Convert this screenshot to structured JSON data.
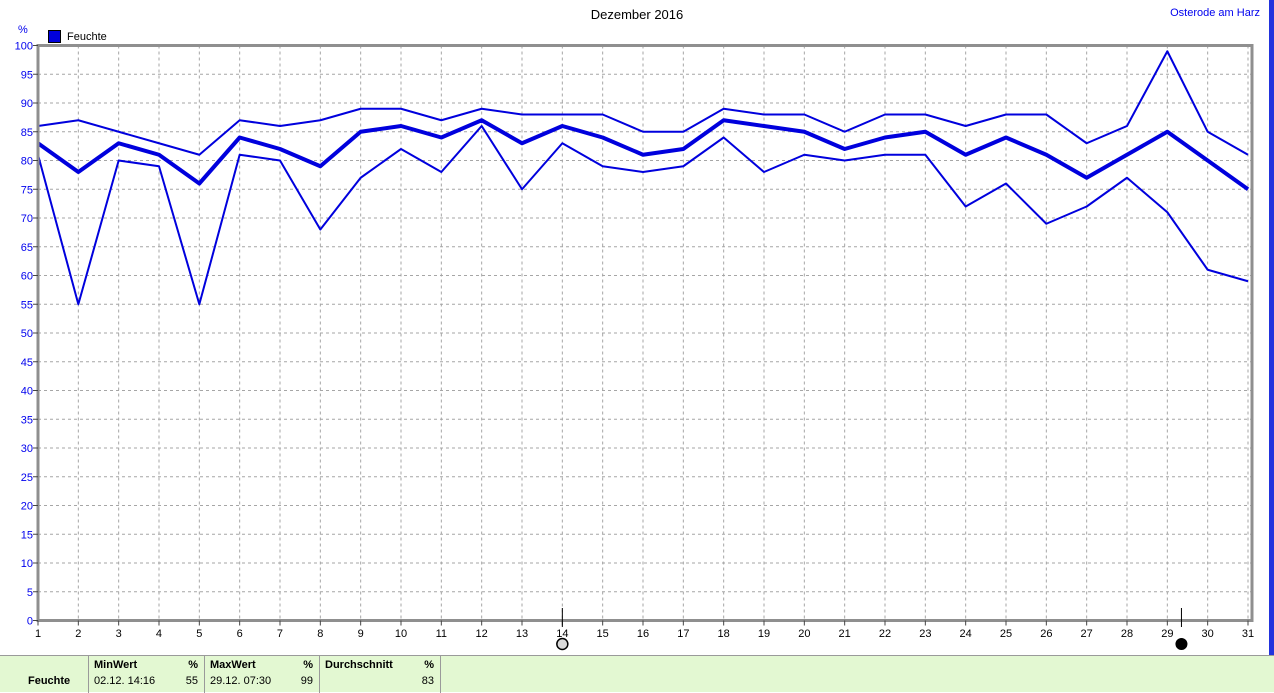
{
  "header": {
    "title": "Dezember 2016",
    "station": "Osterode am Harz"
  },
  "legend": {
    "label": "Feuchte",
    "unit": "%"
  },
  "chart_data": {
    "type": "line",
    "title": "Dezember 2016",
    "ylabel": "%",
    "legend": [
      "Feuchte"
    ],
    "line_color": "#0000dd",
    "grid": true,
    "xlim": [
      1,
      31
    ],
    "ylim": [
      0,
      100
    ],
    "x": [
      1,
      2,
      3,
      4,
      5,
      6,
      7,
      8,
      9,
      10,
      11,
      12,
      13,
      14,
      15,
      16,
      17,
      18,
      19,
      20,
      21,
      22,
      23,
      24,
      25,
      26,
      27,
      28,
      29,
      30,
      31
    ],
    "xticks": [
      1,
      2,
      3,
      4,
      5,
      6,
      7,
      8,
      9,
      10,
      11,
      12,
      13,
      14,
      15,
      16,
      17,
      18,
      19,
      20,
      21,
      22,
      23,
      24,
      25,
      26,
      27,
      28,
      29,
      30,
      31
    ],
    "yticks": [
      0,
      5,
      10,
      15,
      20,
      25,
      30,
      35,
      40,
      45,
      50,
      55,
      60,
      65,
      70,
      75,
      80,
      85,
      90,
      95,
      100
    ],
    "series": [
      {
        "id": "max",
        "name": "Feuchte Maximum",
        "values": [
          86,
          87,
          85,
          83,
          81,
          87,
          86,
          87,
          89,
          89,
          87,
          89,
          88,
          88,
          88,
          85,
          85,
          89,
          88,
          88,
          85,
          88,
          88,
          86,
          88,
          88,
          83,
          86,
          99,
          85,
          81
        ]
      },
      {
        "id": "avg",
        "name": "Feuchte Durchschnitt",
        "emphasis": "thick",
        "values": [
          83,
          78,
          83,
          81,
          76,
          84,
          82,
          79,
          85,
          86,
          84,
          87,
          83,
          86,
          84,
          81,
          82,
          87,
          86,
          85,
          82,
          84,
          85,
          81,
          84,
          81,
          77,
          81,
          85,
          80,
          75
        ]
      },
      {
        "id": "min",
        "name": "Feuchte Minimum",
        "values": [
          81,
          55,
          80,
          79,
          55,
          81,
          80,
          68,
          77,
          82,
          78,
          86,
          75,
          83,
          79,
          78,
          79,
          84,
          78,
          81,
          80,
          81,
          81,
          72,
          76,
          69,
          72,
          77,
          71,
          61,
          59
        ]
      }
    ],
    "annotations": [
      {
        "type": "full-moon",
        "x": 14.0
      },
      {
        "type": "new-moon",
        "x": 29.35
      }
    ]
  },
  "summary_bar": {
    "row_label": "Feuchte",
    "cells": [
      {
        "header": "MinWert",
        "unit": "%",
        "datetime": "02.12. 14:16",
        "value": "55"
      },
      {
        "header": "MaxWert",
        "unit": "%",
        "datetime": "29.12. 07:30",
        "value": "99"
      },
      {
        "header": "Durchschnitt",
        "unit": "%",
        "datetime": "",
        "value": "83"
      }
    ]
  }
}
